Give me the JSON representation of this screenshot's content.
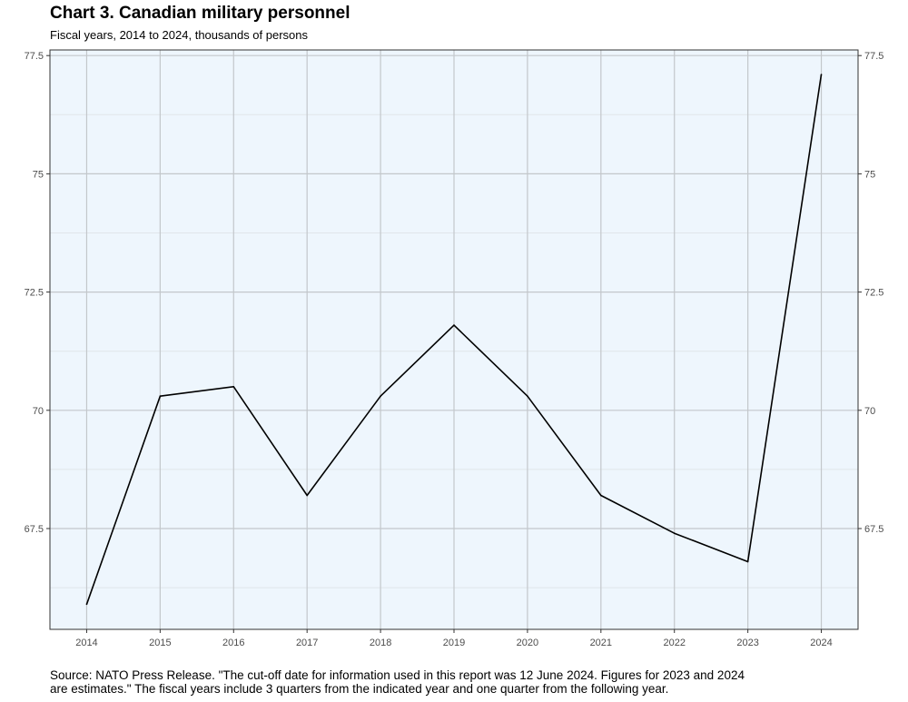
{
  "chart_data": {
    "type": "line",
    "title": "Chart 3. Canadian military personnel",
    "subtitle": "Fiscal years, 2014 to 2024, thousands of persons",
    "xlabel": "",
    "ylabel": "",
    "x": [
      2014,
      2015,
      2016,
      2017,
      2018,
      2019,
      2020,
      2021,
      2022,
      2023,
      2024
    ],
    "series": [
      {
        "values": [
          65.9,
          70.3,
          70.5,
          68.2,
          70.3,
          71.8,
          70.3,
          68.2,
          67.4,
          66.8,
          77.1
        ]
      }
    ],
    "x_ticks": [
      "2014",
      "2015",
      "2016",
      "2017",
      "2018",
      "2019",
      "2020",
      "2021",
      "2022",
      "2023",
      "2024"
    ],
    "y_ticks": [
      67.5,
      70,
      72.5,
      75,
      77.5
    ],
    "y_tick_labels": [
      "67.5",
      "70",
      "72.5",
      "75",
      "77.5"
    ],
    "ylim": [
      65.2,
      77.5
    ],
    "xlim": [
      2013.5,
      2024.5
    ],
    "grid": true,
    "legend": "none",
    "colors": {
      "line": "#000000",
      "panel": "#eef6fd",
      "grid_major": "#c3c7cb",
      "grid_minor": "#e0e5ea",
      "axis_text": "#4d4d4d"
    }
  },
  "source_note": {
    "line1": "Source: NATO Press Release. \"The cut-off date for information used in this report was 12 June 2024. Figures for 2023 and 2024",
    "line2": "are estimates.\" The fiscal years include 3 quarters from the indicated year and one quarter from the following year."
  }
}
